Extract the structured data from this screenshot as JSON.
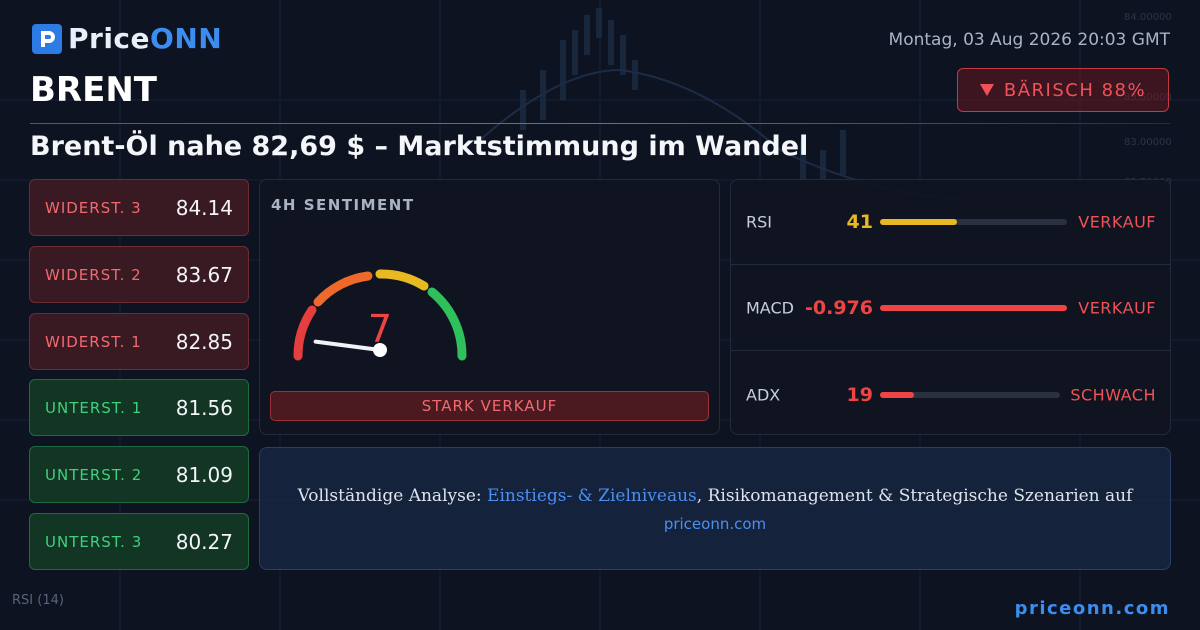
{
  "brand": {
    "name_part1": "Price",
    "name_part2": "ONN"
  },
  "timestamp": "Montag, 03 Aug 2026 20:03 GMT",
  "symbol": "BRENT",
  "badge": {
    "icon": "triangle-down-icon",
    "label": "BÄRISCH 88%"
  },
  "headline": "Brent-Öl nahe 82,69 $ – Marktstimmung im Wandel",
  "levels": [
    {
      "label": "WIDERST. 3",
      "value": "84.14",
      "kind": "resistance"
    },
    {
      "label": "WIDERST. 2",
      "value": "83.67",
      "kind": "resistance"
    },
    {
      "label": "WIDERST. 1",
      "value": "82.85",
      "kind": "resistance"
    },
    {
      "label": "UNTERST. 1",
      "value": "81.56",
      "kind": "support"
    },
    {
      "label": "UNTERST. 2",
      "value": "81.09",
      "kind": "support"
    },
    {
      "label": "UNTERST. 3",
      "value": "80.27",
      "kind": "support"
    }
  ],
  "sentiment": {
    "title": "4H SENTIMENT",
    "score": "7",
    "score_max": 100,
    "signal": "STARK VERKAUF"
  },
  "indicators": [
    {
      "name": "RSI",
      "value": "41",
      "signal": "VERKAUF",
      "level": 0.41,
      "color": "#e8b923",
      "value_color": "#e8b923"
    },
    {
      "name": "MACD",
      "value": "-0.976",
      "signal": "VERKAUF",
      "level": 1.0,
      "color": "#ef4444",
      "value_color": "#ef4444"
    },
    {
      "name": "ADX",
      "value": "19",
      "signal": "SCHWACH",
      "level": 0.19,
      "color": "#ef4444",
      "value_color": "#ef4444"
    }
  ],
  "promo": {
    "text_before": "Vollständige Analyse: ",
    "link_text": "Einstiegs- & Zielniveaus",
    "text_after": ", Risikomanagement & Strategische Szenarien auf",
    "url": "priceonn.com"
  },
  "footer": {
    "url": "priceonn.com",
    "chart_label": "RSI",
    "chart_period": "(14)"
  },
  "colors": {
    "accent": "#3b8df0",
    "bearish": "#f05257",
    "bullish": "#3fd17c",
    "background": "#0d1321"
  }
}
